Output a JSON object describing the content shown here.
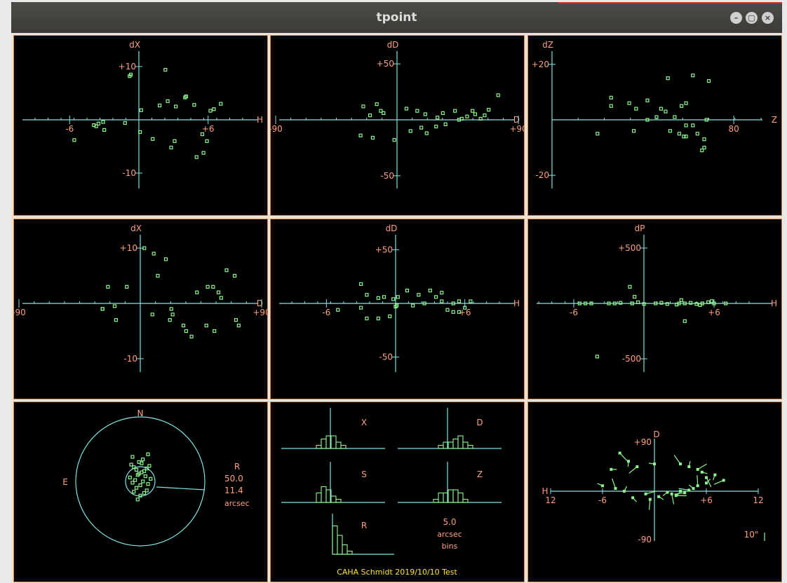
{
  "window": {
    "title": "tpoint",
    "controls": [
      "minimize",
      "maximize",
      "close"
    ]
  },
  "colors": {
    "axis": "#7fe5e5",
    "label": "#ff9f80",
    "points": "#8df58d",
    "footer": "#ffe53a",
    "panel_border": "#d98a3f"
  },
  "panels": [
    {
      "id": "dx-vs-h",
      "chart_data": {
        "type": "scatter",
        "ylabel": "dX",
        "xlabel": "H",
        "xlim": [
          -9,
          9
        ],
        "ylim": [
          -12.5,
          12.5
        ],
        "xticks": [
          {
            "v": -6,
            "label": "-6"
          },
          {
            "v": 6,
            "label": "+6"
          }
        ],
        "yticks": [
          {
            "v": 10,
            "label": "+10"
          },
          {
            "v": -10,
            "label": "-10"
          }
        ],
        "x": [
          -0.8,
          -0.7,
          2.3,
          0.2,
          4.1,
          4.0,
          2.5,
          3.2,
          6.2,
          4.8,
          1.8,
          6.5,
          7.1,
          -3.9,
          -3.7,
          -3.1,
          -1.2,
          -3.5,
          -5.6,
          -3.0,
          0.1,
          1.2,
          3.1,
          5.5,
          5.9,
          2.8,
          5.6,
          5.0
        ],
        "y": [
          8.2,
          8.5,
          9.4,
          1.8,
          4.4,
          4.2,
          3.5,
          2.5,
          1.7,
          2.8,
          2.7,
          2.0,
          3.0,
          -1.0,
          -1.2,
          -0.4,
          -0.6,
          -0.7,
          -3.8,
          -1.9,
          -2.3,
          -3.6,
          -4.0,
          -2.7,
          -4.0,
          -5.2,
          -6.2,
          -7.0
        ]
      }
    },
    {
      "id": "dd-vs-d",
      "chart_data": {
        "type": "scatter",
        "ylabel": "dD",
        "xlabel": "D",
        "xlim": [
          -90,
          90
        ],
        "ylim": [
          -62,
          62
        ],
        "xticks": [
          {
            "v": -90,
            "label": "-90"
          },
          {
            "v": 90,
            "label": "+90"
          }
        ],
        "yticks": [
          {
            "v": 50,
            "label": "+50"
          },
          {
            "v": -50,
            "label": "-50"
          }
        ],
        "x": [
          -25,
          -15,
          -10,
          -12,
          -20,
          7,
          15,
          21,
          30,
          34,
          43,
          48,
          52,
          58,
          62,
          65,
          56,
          68,
          75,
          46,
          36,
          29,
          18,
          10,
          22,
          -27,
          -18,
          -2
        ],
        "y": [
          12,
          14,
          6,
          8,
          4,
          10,
          8,
          5,
          2,
          6,
          8,
          1,
          3,
          5,
          1,
          4,
          8,
          9,
          22,
          0,
          -4,
          -6,
          -7,
          -10,
          -12,
          -14,
          -16,
          -18
        ]
      }
    },
    {
      "id": "dz-vs-z",
      "chart_data": {
        "type": "scatter",
        "ylabel": "dZ",
        "xlabel": "Z",
        "xlim": [
          0,
          92
        ],
        "ylim": [
          -24.5,
          24.5
        ],
        "xticks": [
          {
            "v": 80,
            "label": "80"
          }
        ],
        "yticks": [
          {
            "v": 20,
            "label": "+20"
          },
          {
            "v": -20,
            "label": "-20"
          }
        ],
        "x": [
          51,
          62,
          69,
          68,
          26,
          26,
          34,
          37,
          42,
          48,
          50,
          59,
          57,
          46,
          42,
          36,
          20,
          52,
          56,
          58,
          59,
          64,
          67,
          67,
          66,
          62,
          54,
          59
        ],
        "y": [
          15,
          16,
          14,
          0,
          8,
          5,
          6,
          4,
          7,
          4,
          3,
          6,
          5,
          1,
          0,
          -4,
          -5,
          -4,
          -5,
          -6,
          -6,
          -5,
          -7,
          -10,
          -11,
          -2,
          1,
          -2
        ]
      }
    },
    {
      "id": "dx-vs-d",
      "chart_data": {
        "type": "scatter",
        "ylabel": "dX",
        "xlabel": "D",
        "xlim": [
          -90,
          90
        ],
        "ylim": [
          -12.8,
          12.8
        ],
        "xticks": [
          {
            "v": -90,
            "label": "-90"
          },
          {
            "v": 90,
            "label": "+90"
          }
        ],
        "yticks": [
          {
            "v": 10,
            "label": "+10"
          },
          {
            "v": -10,
            "label": "-10"
          }
        ],
        "x": [
          3,
          10,
          19,
          13,
          -24,
          -10,
          64,
          70,
          42,
          50,
          54,
          58,
          60,
          -28,
          -19,
          -28,
          -18,
          9,
          23,
          24,
          22,
          32,
          34,
          38,
          55,
          73,
          49,
          71
        ],
        "y": [
          10,
          9,
          8,
          5,
          3,
          3,
          6,
          5,
          2,
          3,
          3,
          2,
          1,
          -1,
          -0.5,
          -1,
          -3,
          -2,
          -1,
          -2,
          -3,
          -4,
          -5,
          -6,
          -5,
          -4,
          -4,
          -3
        ]
      }
    },
    {
      "id": "dd-vs-h",
      "chart_data": {
        "type": "scatter",
        "ylabel": "dD",
        "xlabel": "H",
        "xlim": [
          -9,
          9
        ],
        "ylim": [
          -62,
          62
        ],
        "xticks": [
          {
            "v": -6,
            "label": "-6"
          },
          {
            "v": 6,
            "label": "+6"
          }
        ],
        "yticks": [
          {
            "v": 50,
            "label": "+50"
          },
          {
            "v": -50,
            "label": "-50"
          }
        ],
        "x": [
          -3,
          -2.5,
          -1,
          -0.2,
          0.2,
          1,
          2,
          3,
          3.5,
          4,
          5,
          5.5,
          6,
          6.5,
          -5,
          -3,
          -1.5,
          0,
          1.5,
          2.5,
          4,
          4.5,
          5,
          5.5,
          -2.5,
          -1.5,
          -0.5,
          0.1
        ],
        "y": [
          18,
          8,
          6,
          4,
          6,
          12,
          8,
          12,
          6,
          10,
          0,
          2,
          -4,
          2,
          -6,
          -4,
          5,
          -3,
          -2,
          0,
          2,
          -6,
          -8,
          -8,
          -14,
          -14,
          -12,
          -2
        ]
      }
    },
    {
      "id": "dp-vs-h",
      "chart_data": {
        "type": "scatter",
        "ylabel": "dP",
        "xlabel": "H",
        "xlim": [
          -9,
          9
        ],
        "ylim": [
          -620,
          620
        ],
        "xticks": [
          {
            "v": -6,
            "label": "-6"
          },
          {
            "v": 6,
            "label": "+6"
          }
        ],
        "yticks": [
          {
            "v": 500,
            "label": "+500"
          },
          {
            "v": -500,
            "label": "-500"
          }
        ],
        "x": [
          -5.5,
          -5,
          -4.5,
          -3,
          -2.5,
          -2,
          -1,
          -0.5,
          0,
          1,
          1.5,
          2,
          3,
          3.5,
          4,
          4.5,
          5,
          5.5,
          6,
          7,
          -0.8,
          -1.2,
          3.5,
          2.8,
          -4,
          5.8,
          4.8,
          3.2
        ],
        "y": [
          0,
          0,
          0,
          0,
          0,
          5,
          0,
          10,
          -5,
          0,
          5,
          -5,
          0,
          0,
          5,
          -5,
          0,
          10,
          0,
          0,
          60,
          150,
          -160,
          -10,
          -480,
          20,
          -15,
          30
        ]
      }
    },
    {
      "id": "radial-error",
      "chart_data": {
        "type": "scatter",
        "compass": {
          "north": "N",
          "east": "E"
        },
        "legend": {
          "R": "R",
          "outer": "50.0",
          "inner": "11.4",
          "unit": "arcsec"
        },
        "outer_radius": 50.0,
        "inner_radius": 11.4,
        "x": [
          -2,
          0,
          3,
          -5,
          5,
          -3,
          0,
          6,
          -6,
          2,
          -4,
          8,
          -8,
          4,
          -2,
          -1,
          1,
          3,
          -3,
          5,
          -5,
          7,
          -7,
          1,
          -1,
          2,
          -6,
          6
        ],
        "y": [
          -14,
          -11,
          -9,
          -8,
          -7,
          -5,
          -3,
          -2,
          -1,
          0,
          1,
          2,
          3,
          4,
          5,
          6,
          7,
          8,
          9,
          10,
          11,
          12,
          13,
          14,
          15,
          17,
          19,
          21
        ]
      }
    },
    {
      "id": "histograms",
      "chart_data": {
        "type": "bar",
        "histograms": [
          {
            "label": "X",
            "values": [
              1,
              3,
              4,
              4,
              2,
              1,
              0,
              0
            ]
          },
          {
            "label": "D",
            "values": [
              0,
              1,
              2,
              2,
              3,
              4,
              2,
              1
            ]
          },
          {
            "label": "S",
            "values": [
              3,
              5,
              4,
              2,
              1,
              0,
              0,
              0
            ]
          },
          {
            "label": "Z",
            "values": [
              1,
              3,
              3,
              4,
              4,
              3,
              1,
              0
            ]
          },
          {
            "label": "R",
            "values": [
              9,
              6,
              3,
              1,
              0,
              0,
              0,
              0
            ]
          }
        ],
        "bins_label": {
          "value": "5.0",
          "unit": "arcsec",
          "word": "bins"
        },
        "footer": "CAHA Schmidt 2019/10/10 Test"
      }
    },
    {
      "id": "field-vectors",
      "chart_data": {
        "type": "scatter",
        "xlabel": "H",
        "ylabel": "D",
        "xlim": [
          -12,
          12
        ],
        "ylim": [
          -90,
          90
        ],
        "xtick_labels": [
          "12",
          "-6",
          "+6",
          "12"
        ],
        "ytick_labels": [
          "+90",
          "-90"
        ],
        "scale_label": "10\"",
        "x": [
          -5,
          -4,
          -3,
          -2,
          0,
          3,
          4,
          5,
          5.5,
          6,
          7,
          8,
          -6,
          -4.5,
          -3.5,
          -1,
          0.5,
          2,
          3,
          3.5,
          4.5,
          5,
          6,
          2.5,
          -2.5,
          -0.5,
          1.5,
          4
        ],
        "y": [
          40,
          70,
          55,
          45,
          50,
          50,
          45,
          40,
          35,
          25,
          30,
          20,
          10,
          5,
          0,
          -5,
          -10,
          -5,
          0,
          -3,
          5,
          10,
          15,
          -8,
          -12,
          -15,
          -2,
          2
        ]
      }
    }
  ]
}
